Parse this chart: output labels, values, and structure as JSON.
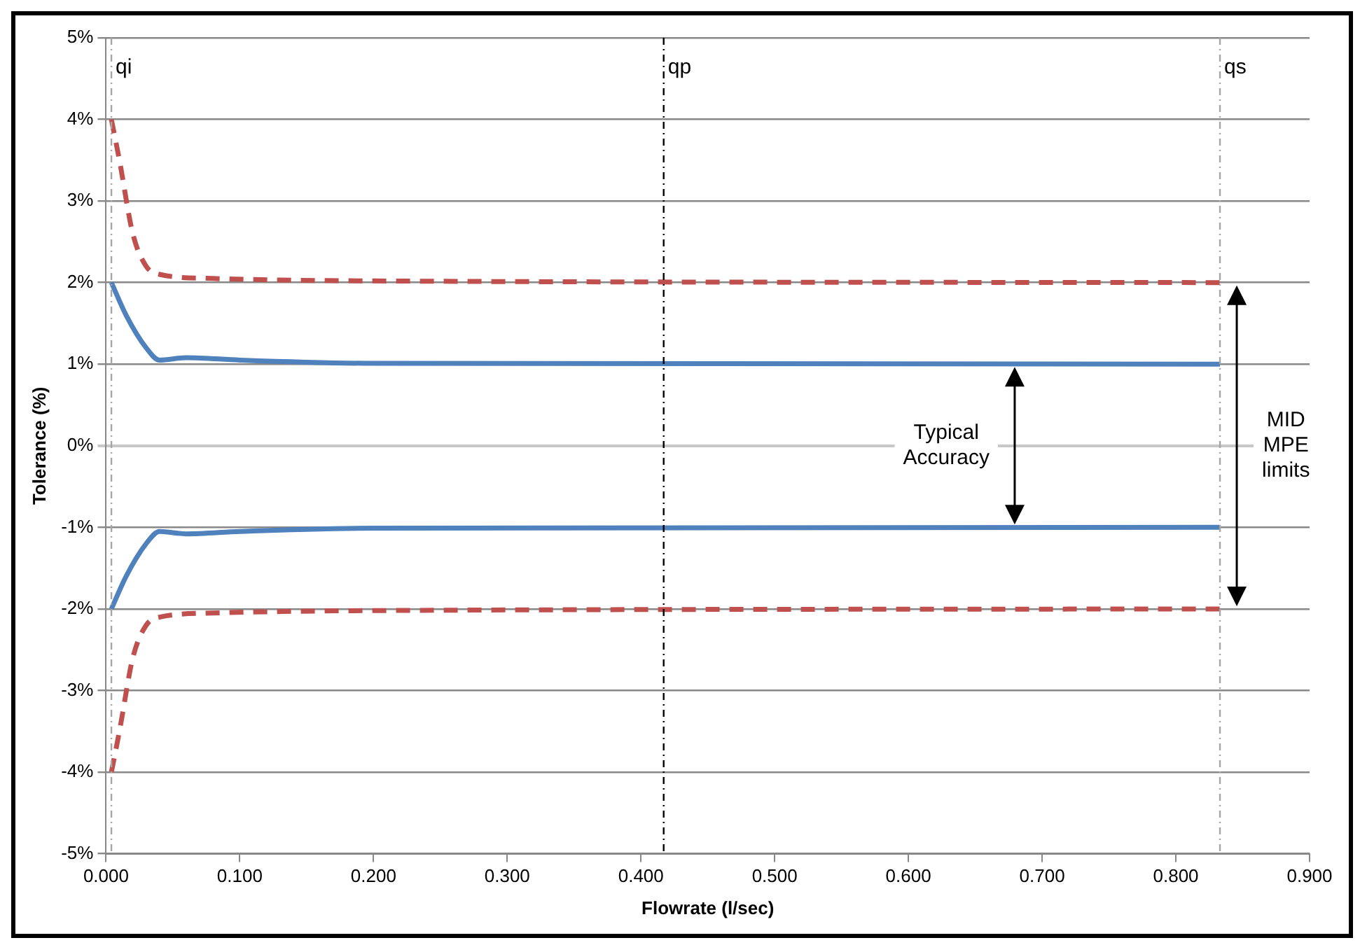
{
  "chart_data": {
    "type": "line",
    "xlabel": "Flowrate (l/sec)",
    "ylabel": "Tolerance (%)",
    "xlim": [
      0,
      0.9
    ],
    "xticks": [
      {
        "value": 0,
        "label": "0.000"
      },
      {
        "value": 0.1,
        "label": "0.100"
      },
      {
        "value": 0.2,
        "label": "0.200"
      },
      {
        "value": 0.3,
        "label": "0.300"
      },
      {
        "value": 0.4,
        "label": "0.400"
      },
      {
        "value": 0.5,
        "label": "0.500"
      },
      {
        "value": 0.6,
        "label": "0.600"
      },
      {
        "value": 0.7,
        "label": "0.700"
      },
      {
        "value": 0.8,
        "label": "0.800"
      },
      {
        "value": 0.9,
        "label": "0.900"
      }
    ],
    "ylim": [
      -5,
      5
    ],
    "yticks": [
      {
        "value": -5,
        "label": "-5%"
      },
      {
        "value": -4,
        "label": "-4%"
      },
      {
        "value": -3,
        "label": "-3%"
      },
      {
        "value": -2,
        "label": "-2%"
      },
      {
        "value": -1,
        "label": "-1%"
      },
      {
        "value": 0,
        "label": "0%"
      },
      {
        "value": 1,
        "label": "1%"
      },
      {
        "value": 2,
        "label": "2%"
      },
      {
        "value": 3,
        "label": "3%"
      },
      {
        "value": 4,
        "label": "4%"
      },
      {
        "value": 5,
        "label": "5%"
      }
    ],
    "grid": "y",
    "legend": false,
    "marker": "none",
    "series": [
      {
        "color": "#4f81bd",
        "line_style": "solid",
        "x": [
          0.004,
          0.015,
          0.03,
          0.04,
          0.06,
          0.1,
          0.2,
          0.833
        ],
        "values": [
          2,
          1.6,
          1.2,
          1.05,
          1.08,
          1.05,
          1.01,
          1
        ]
      },
      {
        "color": "#4f81bd",
        "line_style": "solid",
        "x": [
          0.004,
          0.015,
          0.03,
          0.04,
          0.06,
          0.1,
          0.2,
          0.833
        ],
        "values": [
          -2,
          -1.6,
          -1.2,
          -1.05,
          -1.08,
          -1.05,
          -1.01,
          -1
        ]
      },
      {
        "color": "#c0504d",
        "line_style": "dashed",
        "x": [
          0.004,
          0.01,
          0.02,
          0.03,
          0.04,
          0.08,
          0.2,
          0.833
        ],
        "values": [
          4,
          3.5,
          2.6,
          2.2,
          2.1,
          2.05,
          2.02,
          2
        ]
      },
      {
        "color": "#c0504d",
        "line_style": "dashed",
        "x": [
          0.004,
          0.01,
          0.02,
          0.03,
          0.04,
          0.08,
          0.2,
          0.833
        ],
        "values": [
          -4,
          -3.5,
          -2.6,
          -2.2,
          -2.1,
          -2.05,
          -2.02,
          -2
        ]
      }
    ],
    "ref_lines": [
      {
        "axis": "x",
        "value": 0.004,
        "label": "qi",
        "color": "#a6a6a6",
        "line_style": "dashed"
      },
      {
        "axis": "x",
        "value": 0.417,
        "label": "qp",
        "color": "#000000",
        "line_style": "dashed"
      },
      {
        "axis": "x",
        "value": 0.833,
        "label": "qs",
        "color": "#a6a6a6",
        "line_style": "dashed"
      }
    ],
    "annotations": [
      "Typical Accuracy",
      "MID MPE limits"
    ]
  }
}
